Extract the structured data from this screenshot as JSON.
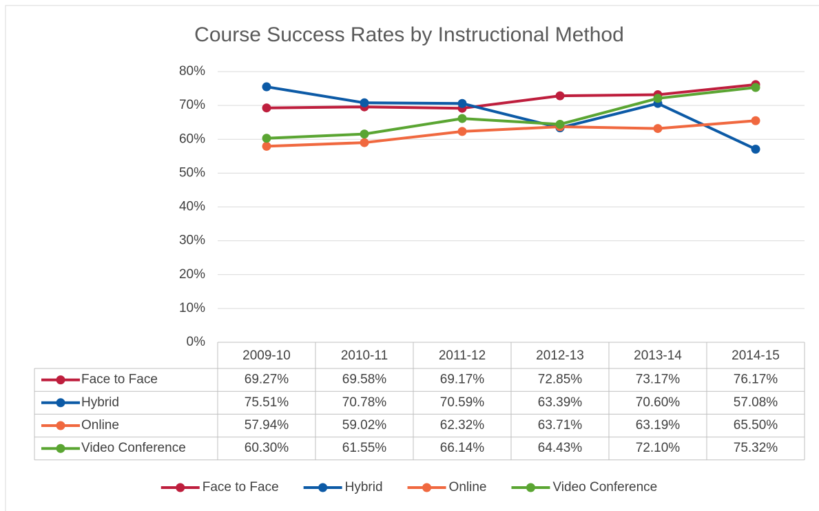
{
  "chart_data": {
    "type": "line",
    "title": "Course Success Rates by Instructional Method",
    "categories": [
      "2009-10",
      "2010-11",
      "2011-12",
      "2012-13",
      "2013-14",
      "2014-15"
    ],
    "series": [
      {
        "name": "Face to Face",
        "color": "#be1e3d",
        "values": [
          69.27,
          69.58,
          69.17,
          72.85,
          73.17,
          76.17
        ],
        "value_labels": [
          "69.27%",
          "69.58%",
          "69.17%",
          "72.85%",
          "73.17%",
          "76.17%"
        ]
      },
      {
        "name": "Hybrid",
        "color": "#0c5aa6",
        "values": [
          75.51,
          70.78,
          70.59,
          63.39,
          70.6,
          57.08
        ],
        "value_labels": [
          "75.51%",
          "70.78%",
          "70.59%",
          "63.39%",
          "70.60%",
          "57.08%"
        ]
      },
      {
        "name": "Online",
        "color": "#f0683f",
        "values": [
          57.94,
          59.02,
          62.32,
          63.71,
          63.19,
          65.5
        ],
        "value_labels": [
          "57.94%",
          "59.02%",
          "62.32%",
          "63.71%",
          "63.19%",
          "65.50%"
        ]
      },
      {
        "name": "Video Conference",
        "color": "#5aa532",
        "values": [
          60.3,
          61.55,
          66.14,
          64.43,
          72.1,
          75.32
        ],
        "value_labels": [
          "60.30%",
          "61.55%",
          "66.14%",
          "64.43%",
          "72.10%",
          "75.32%"
        ]
      }
    ],
    "ylim": [
      0,
      80
    ],
    "yticks": [
      {
        "value": 0,
        "label": "0%"
      },
      {
        "value": 10,
        "label": "10%"
      },
      {
        "value": 20,
        "label": "20%"
      },
      {
        "value": 30,
        "label": "30%"
      },
      {
        "value": 40,
        "label": "40%"
      },
      {
        "value": 50,
        "label": "50%"
      },
      {
        "value": 60,
        "label": "60%"
      },
      {
        "value": 70,
        "label": "70%"
      },
      {
        "value": 80,
        "label": "80%"
      }
    ],
    "grid": true,
    "data_table": true,
    "legend": "bottom"
  }
}
